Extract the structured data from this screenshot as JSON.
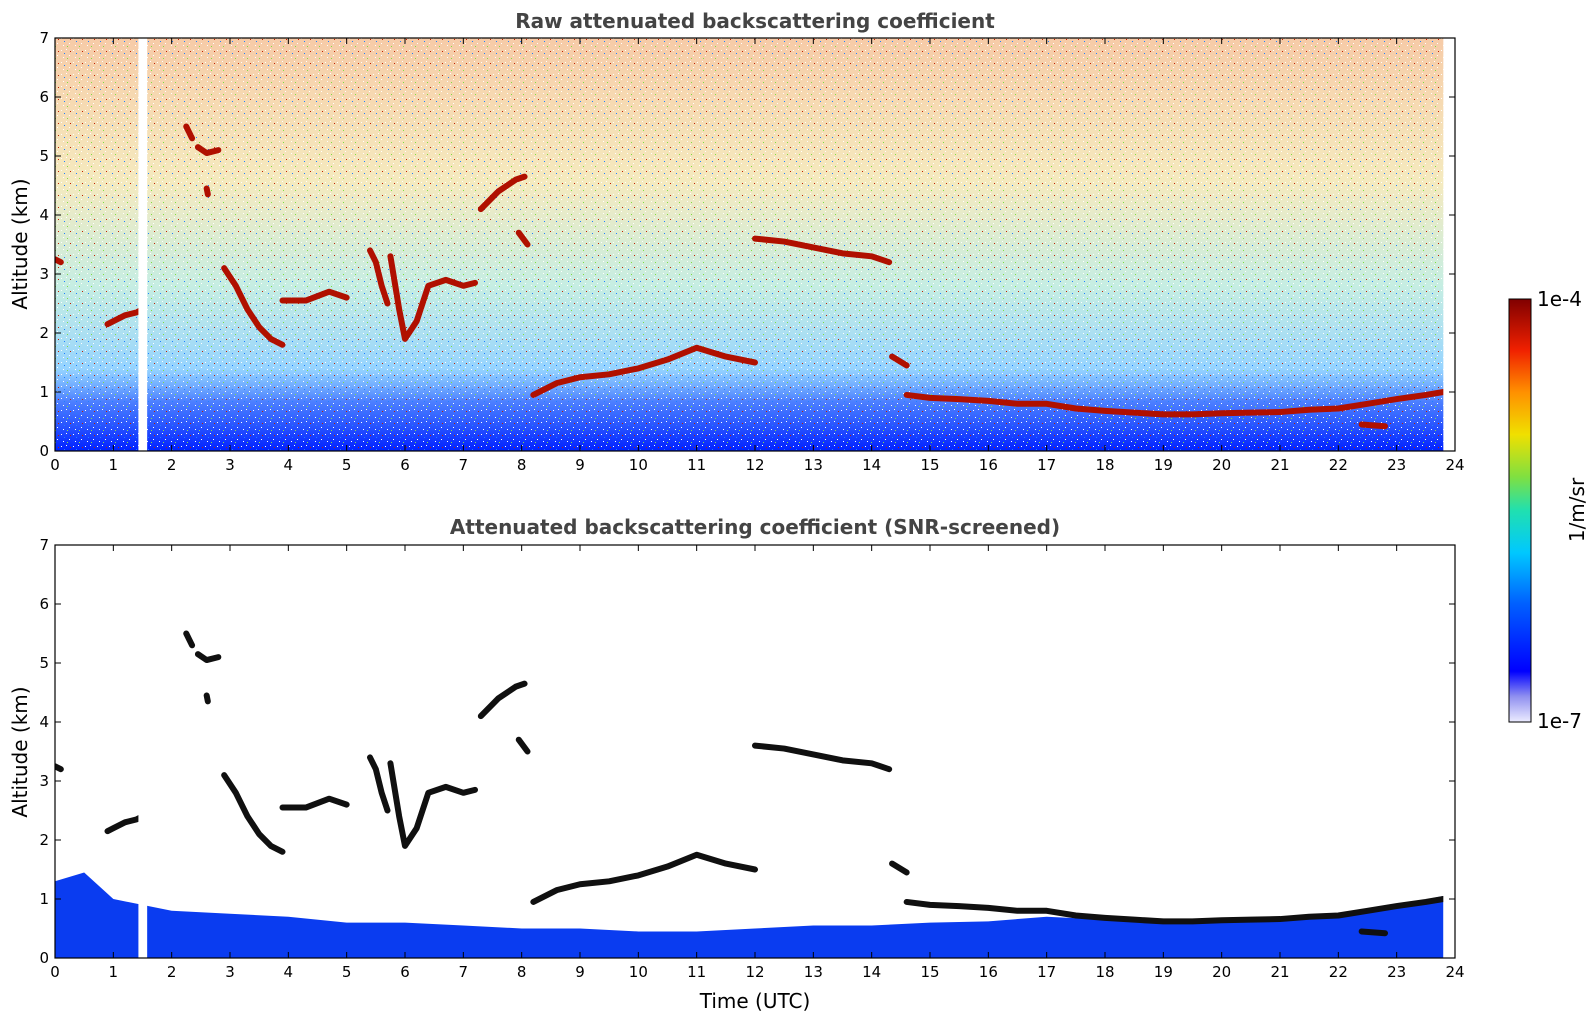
{
  "chart_data": [
    {
      "type": "heatmap",
      "title": "Raw attenuated backscattering coefficient",
      "xlabel": "",
      "ylabel": "Altitude (km)",
      "xlim": [
        0,
        24
      ],
      "ylim": [
        0,
        7
      ],
      "xticks": [
        "0",
        "1",
        "2",
        "3",
        "4",
        "5",
        "6",
        "7",
        "8",
        "9",
        "10",
        "11",
        "12",
        "13",
        "14",
        "15",
        "16",
        "17",
        "18",
        "19",
        "20",
        "21",
        "22",
        "23",
        "24"
      ],
      "yticks": [
        "0",
        "1",
        "2",
        "3",
        "4",
        "5",
        "6",
        "7"
      ],
      "screened": false,
      "data_gap": [
        1.43,
        1.58
      ],
      "data_end": 23.8,
      "cloud_layers": [
        {
          "x": [
            0.0,
            0.1
          ],
          "y": [
            3.25,
            3.2
          ]
        },
        {
          "x": [
            0.9,
            1.0,
            1.2,
            1.4,
            1.5
          ],
          "y": [
            2.15,
            2.2,
            2.3,
            2.35,
            2.4
          ]
        },
        {
          "x": [
            2.25,
            2.3,
            2.35
          ],
          "y": [
            5.5,
            5.4,
            5.3
          ]
        },
        {
          "x": [
            2.45,
            2.6,
            2.8
          ],
          "y": [
            5.15,
            5.05,
            5.1
          ]
        },
        {
          "x": [
            2.6,
            2.62
          ],
          "y": [
            4.45,
            4.35
          ]
        },
        {
          "x": [
            2.9,
            3.1,
            3.3,
            3.5,
            3.7,
            3.9
          ],
          "y": [
            3.1,
            2.8,
            2.4,
            2.1,
            1.9,
            1.8
          ]
        },
        {
          "x": [
            3.9,
            4.3,
            4.7,
            5.0
          ],
          "y": [
            2.55,
            2.55,
            2.7,
            2.6
          ]
        },
        {
          "x": [
            5.4,
            5.5,
            5.6,
            5.7
          ],
          "y": [
            3.4,
            3.2,
            2.8,
            2.5
          ]
        },
        {
          "x": [
            5.75,
            5.9,
            6.0,
            6.2,
            6.4,
            6.7,
            7.0,
            7.2
          ],
          "y": [
            3.3,
            2.4,
            1.9,
            2.2,
            2.8,
            2.9,
            2.8,
            2.85
          ]
        },
        {
          "x": [
            7.3,
            7.6,
            7.9,
            8.05
          ],
          "y": [
            4.1,
            4.4,
            4.6,
            4.65
          ]
        },
        {
          "x": [
            7.95,
            8.1
          ],
          "y": [
            3.7,
            3.5
          ]
        },
        {
          "x": [
            8.2,
            8.6,
            9.0,
            9.5,
            10.0,
            10.5,
            11.0,
            11.5,
            12.0
          ],
          "y": [
            0.95,
            1.15,
            1.25,
            1.3,
            1.4,
            1.55,
            1.75,
            1.6,
            1.5
          ]
        },
        {
          "x": [
            12.0,
            12.5,
            13.0,
            13.5,
            14.0,
            14.3
          ],
          "y": [
            3.6,
            3.55,
            3.45,
            3.35,
            3.3,
            3.2
          ]
        },
        {
          "x": [
            14.35,
            14.6
          ],
          "y": [
            1.6,
            1.45
          ]
        },
        {
          "x": [
            14.6,
            15.0,
            15.5,
            16.0,
            16.5,
            17.0,
            17.5,
            18.0,
            18.5,
            19.0,
            19.5,
            20.0,
            20.5,
            21.0,
            21.5,
            22.0,
            22.5,
            23.0,
            23.5,
            23.8
          ],
          "y": [
            0.95,
            0.9,
            0.88,
            0.85,
            0.8,
            0.8,
            0.72,
            0.68,
            0.65,
            0.62,
            0.62,
            0.64,
            0.65,
            0.66,
            0.7,
            0.72,
            0.8,
            0.88,
            0.95,
            1.0
          ]
        },
        {
          "x": [
            22.4,
            22.8
          ],
          "y": [
            0.45,
            0.42
          ]
        }
      ]
    },
    {
      "type": "heatmap",
      "title": "Attenuated backscattering coefficient (SNR-screened)",
      "xlabel": "Time (UTC)",
      "ylabel": "Altitude (km)",
      "xlim": [
        0,
        24
      ],
      "ylim": [
        0,
        7
      ],
      "xticks": [
        "0",
        "1",
        "2",
        "3",
        "4",
        "5",
        "6",
        "7",
        "8",
        "9",
        "10",
        "11",
        "12",
        "13",
        "14",
        "15",
        "16",
        "17",
        "18",
        "19",
        "20",
        "21",
        "22",
        "23",
        "24"
      ],
      "yticks": [
        "0",
        "1",
        "2",
        "3",
        "4",
        "5",
        "6",
        "7"
      ],
      "screened": true,
      "data_gap": [
        1.43,
        1.58
      ],
      "data_end": 23.8,
      "boundary_layer_top": {
        "x": [
          0,
          0.5,
          1.0,
          1.5,
          2.0,
          3.0,
          4.0,
          5.0,
          6.0,
          7.0,
          8.0,
          9.0,
          10.0,
          11.0,
          12.0,
          13.0,
          14.0,
          15.0,
          16.0,
          17.0,
          18.0,
          19.0,
          20.0,
          21.0,
          22.0,
          23.0,
          23.8
        ],
        "y": [
          1.3,
          1.45,
          1.0,
          0.9,
          0.8,
          0.75,
          0.7,
          0.6,
          0.6,
          0.55,
          0.5,
          0.5,
          0.45,
          0.45,
          0.5,
          0.55,
          0.55,
          0.6,
          0.62,
          0.7,
          0.65,
          0.6,
          0.62,
          0.65,
          0.75,
          0.9,
          1.05
        ]
      }
    }
  ],
  "colorbar": {
    "label": "1/m/sr",
    "max_label": "1e-4",
    "min_label": "1e-7",
    "colors": [
      "#e8e8f8",
      "#b8b8f0",
      "#7878f0",
      "#0000ff",
      "#0050ff",
      "#00a0ff",
      "#00e0e0",
      "#40e080",
      "#a0e040",
      "#f0e000",
      "#ffa000",
      "#ff4000",
      "#e00000",
      "#900000"
    ]
  }
}
